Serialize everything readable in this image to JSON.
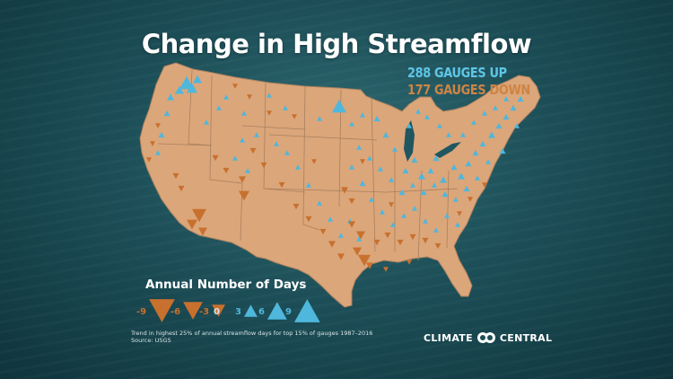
{
  "title": "Change in High Streamflow",
  "counts": {
    "up": "288 GAUGES UP",
    "down": "177 GAUGES DOWN"
  },
  "legend": {
    "title": "Annual Number of Days",
    "items": [
      {
        "label": "-9",
        "value": -9
      },
      {
        "label": "-6",
        "value": -6
      },
      {
        "label": "-3",
        "value": -3
      },
      {
        "label": "0",
        "value": 0
      },
      {
        "label": "3",
        "value": 3
      },
      {
        "label": "6",
        "value": 6
      },
      {
        "label": "9",
        "value": 9
      }
    ]
  },
  "footnote": {
    "line1": "Trend in highest 25% of annual streamflow days for top 15% of gauges 1987–2016",
    "line2": "Source: USGS"
  },
  "brand": {
    "left": "CLIMATE",
    "right": "CENTRAL"
  },
  "colors": {
    "up": "#4fb7dc",
    "down": "#c8702e",
    "land": "#dba67a",
    "border": "#a9805e"
  }
}
